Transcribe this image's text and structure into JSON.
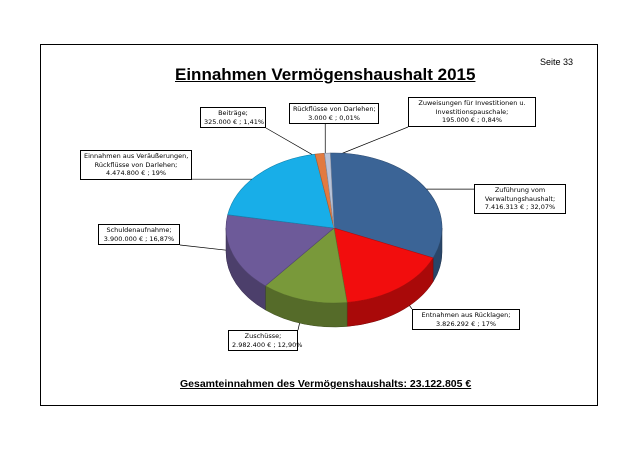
{
  "page": {
    "page_number": "Seite 33"
  },
  "chart_data": {
    "type": "pie",
    "title": "Einnahmen Vermögenshaushalt 2015",
    "footer": "Gesamteinnahmen des Vermögenshaushalts:  23.122.805 €",
    "slices": [
      {
        "name": "Zuführung vom Verwaltungshaushalt",
        "value": 7416313,
        "percent": 32.07,
        "color": "#3b6496",
        "label_lines": [
          "Zuführung vom",
          "Verwaltungshaushalt;",
          "7.416.313 € ; 32,07%"
        ]
      },
      {
        "name": "Entnahmen aus Rücklagen",
        "value": 3826292,
        "percent": 17,
        "color": "#f20d0d",
        "label_lines": [
          "Entnahmen aus  Rücklagen;",
          "3.826.292 € ; 17%"
        ]
      },
      {
        "name": "Zuschüsse",
        "value": 2982400,
        "percent": 12.9,
        "color": "#79993a",
        "label_lines": [
          "Zuschüsse;",
          "2.982.400 € ; 12,90%"
        ]
      },
      {
        "name": "Schuldenaufnahme",
        "value": 3900000,
        "percent": 16.87,
        "color": "#6d5a99",
        "label_lines": [
          "Schuldenaufnahme;",
          "3.900.000 € ; 16,87%"
        ]
      },
      {
        "name": "Einnahmen aus Veräußerungen, Rückflüsse von Darlehen",
        "value": 4474800,
        "percent": 19,
        "color": "#18aee8",
        "label_lines": [
          "Einnahmen aus Veräußerungen,",
          "Rückflüsse von Darlehen;",
          "4.474.800 € ; 19%"
        ]
      },
      {
        "name": "Beiträge",
        "value": 325000,
        "percent": 1.41,
        "color": "#e27a3f",
        "label_lines": [
          "Beiträge;",
          "325.000 € ; 1,41%"
        ]
      },
      {
        "name": "Rückflüsse von Darlehen",
        "value": 3000,
        "percent": 0.01,
        "color": "#9aa6c8",
        "label_lines": [
          "Rückflüsse von Darlehen;",
          "3.000 € ; 0,01%"
        ]
      },
      {
        "name": "Zuweisungen für Investitionen u. Investitionspauschale",
        "value": 195000,
        "percent": 0.84,
        "color": "#b9c3d8",
        "label_lines": [
          "Zuweisungen für Investitionen u.",
          "Investitionspauschale;",
          "195.000 € ; 0,84%"
        ]
      }
    ]
  }
}
